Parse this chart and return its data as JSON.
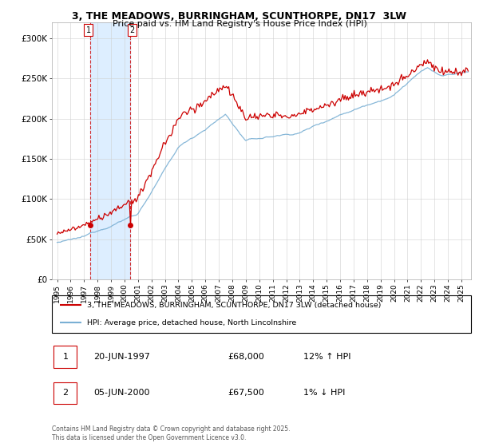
{
  "title": "3, THE MEADOWS, BURRINGHAM, SCUNTHORPE, DN17  3LW",
  "subtitle": "Price paid vs. HM Land Registry's House Price Index (HPI)",
  "legend_line1": "3, THE MEADOWS, BURRINGHAM, SCUNTHORPE, DN17 3LW (detached house)",
  "legend_line2": "HPI: Average price, detached house, North Lincolnshire",
  "footnote": "Contains HM Land Registry data © Crown copyright and database right 2025.\nThis data is licensed under the Open Government Licence v3.0.",
  "transaction1": {
    "label": "1",
    "date": "20-JUN-1997",
    "price": "£68,000",
    "hpi": "12% ↑ HPI"
  },
  "transaction2": {
    "label": "2",
    "date": "05-JUN-2000",
    "price": "£67,500",
    "hpi": "1% ↓ HPI"
  },
  "ylim": [
    0,
    320000
  ],
  "yticks": [
    0,
    50000,
    100000,
    150000,
    200000,
    250000,
    300000
  ],
  "ytick_labels": [
    "£0",
    "£50K",
    "£100K",
    "£150K",
    "£200K",
    "£250K",
    "£300K"
  ],
  "house_color": "#cc0000",
  "hpi_color": "#7ab0d4",
  "shade_color": "#ddeeff",
  "transaction1_x": 1997.47,
  "transaction2_x": 2000.43,
  "transaction1_y": 68000,
  "transaction2_y": 67500,
  "xmin": 1994.6,
  "xmax": 2025.7,
  "xtick_years": [
    1995,
    1996,
    1997,
    1998,
    1999,
    2000,
    2001,
    2002,
    2003,
    2004,
    2005,
    2006,
    2007,
    2008,
    2009,
    2010,
    2011,
    2012,
    2013,
    2014,
    2015,
    2016,
    2017,
    2018,
    2019,
    2020,
    2021,
    2022,
    2023,
    2024,
    2025
  ]
}
